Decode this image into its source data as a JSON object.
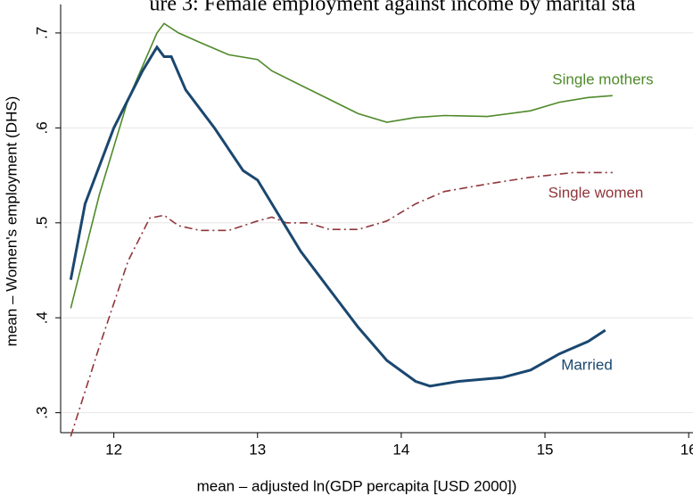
{
  "chart_data": {
    "type": "line",
    "title": "ure 3: Female employment against income by marital sta",
    "x_label": "mean – adjusted ln(GDP percapita [USD 2000])",
    "y_label": "mean – Women's employment (DHS)",
    "xlim": [
      11.63,
      16.03
    ],
    "ylim": [
      0.279,
      0.73
    ],
    "xticks": [
      12,
      13,
      14,
      15,
      16
    ],
    "yticks": [
      {
        "value": 0.3,
        "label": ".3"
      },
      {
        "value": 0.4,
        "label": ".4"
      },
      {
        "value": 0.5,
        "label": ".5"
      },
      {
        "value": 0.6,
        "label": ".6"
      },
      {
        "value": 0.7,
        "label": ".7"
      }
    ],
    "grid": true,
    "series": [
      {
        "name": "Single mothers",
        "color": "#4f8a2a",
        "dash": "solid",
        "x": [
          11.7,
          11.9,
          12.1,
          12.3,
          12.35,
          12.45,
          12.6,
          12.8,
          13.0,
          13.1,
          13.3,
          13.5,
          13.7,
          13.9,
          14.1,
          14.3,
          14.6,
          14.9,
          15.1,
          15.3,
          15.47
        ],
        "values": [
          0.41,
          0.53,
          0.63,
          0.7,
          0.71,
          0.7,
          0.69,
          0.677,
          0.672,
          0.66,
          0.645,
          0.63,
          0.615,
          0.606,
          0.611,
          0.613,
          0.612,
          0.618,
          0.627,
          0.632,
          0.634
        ]
      },
      {
        "name": "Single women",
        "color": "#90353b",
        "dash": "dashdot",
        "x": [
          11.7,
          11.9,
          12.1,
          12.25,
          12.35,
          12.45,
          12.6,
          12.8,
          13.0,
          13.1,
          13.2,
          13.35,
          13.5,
          13.7,
          13.9,
          14.1,
          14.3,
          14.6,
          14.9,
          15.2,
          15.47
        ],
        "values": [
          0.275,
          0.37,
          0.46,
          0.505,
          0.508,
          0.497,
          0.492,
          0.492,
          0.502,
          0.506,
          0.5,
          0.5,
          0.493,
          0.493,
          0.502,
          0.52,
          0.533,
          0.541,
          0.548,
          0.553,
          0.553
        ]
      },
      {
        "name": "Married",
        "color": "#1a476f",
        "dash": "solid",
        "x": [
          11.7,
          11.8,
          12.0,
          12.2,
          12.28,
          12.3,
          12.35,
          12.4,
          12.5,
          12.7,
          12.9,
          13.0,
          13.1,
          13.3,
          13.5,
          13.7,
          13.9,
          14.1,
          14.2,
          14.4,
          14.7,
          14.9,
          15.1,
          15.3,
          15.42
        ],
        "values": [
          0.44,
          0.52,
          0.6,
          0.66,
          0.68,
          0.685,
          0.675,
          0.675,
          0.64,
          0.6,
          0.555,
          0.545,
          0.52,
          0.47,
          0.43,
          0.39,
          0.355,
          0.333,
          0.328,
          0.333,
          0.337,
          0.345,
          0.362,
          0.375,
          0.387
        ]
      }
    ]
  }
}
